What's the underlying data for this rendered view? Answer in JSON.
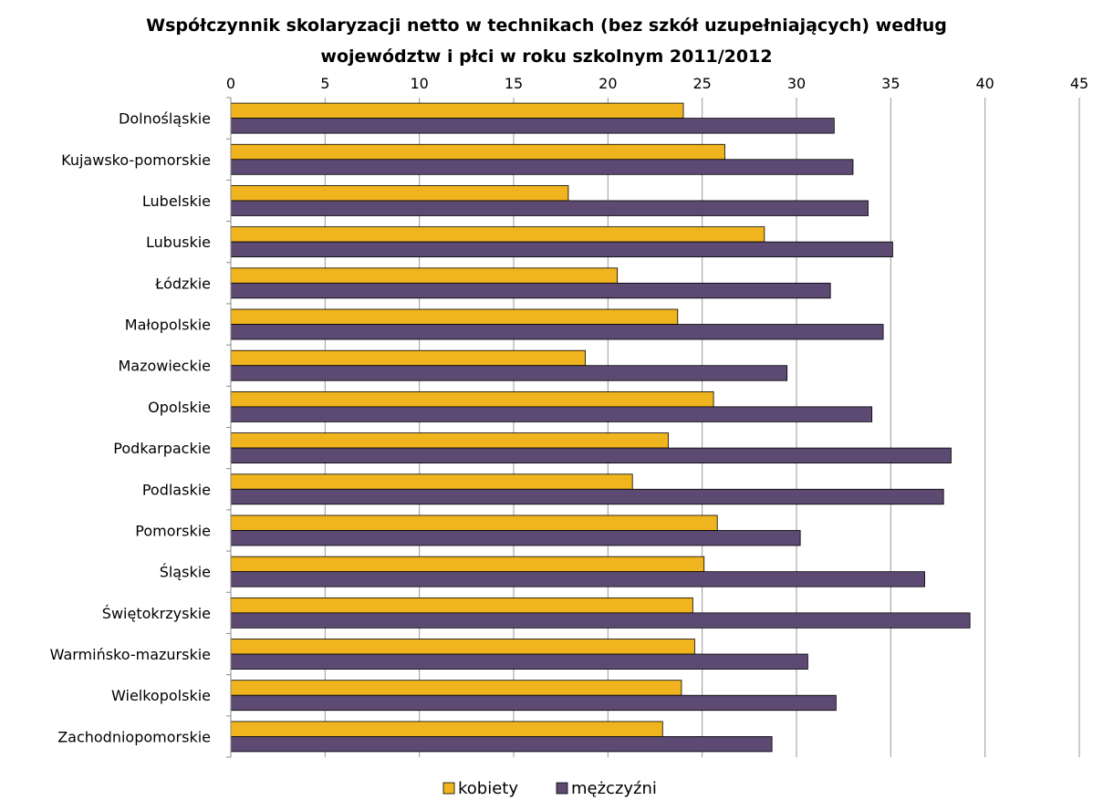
{
  "chart_data": {
    "type": "bar",
    "orientation": "horizontal",
    "title_lines": [
      "Współczynnik skolaryzacji netto w technikach (bez szkół uzupełniających) według",
      "województw i płci w roku szkolnym 2011/2012"
    ],
    "xlim": [
      0,
      45
    ],
    "x_ticks": [
      "0",
      "5",
      "10",
      "15",
      "20",
      "25",
      "30",
      "35",
      "40",
      "45"
    ],
    "x_axis_position": "top",
    "grid": "vertical",
    "legend_position": "bottom",
    "categories": [
      "Dolnośląskie",
      "Kujawsko-pomorskie",
      "Lubelskie",
      "Lubuskie",
      "Łódzkie",
      "Małopolskie",
      "Mazowieckie",
      "Opolskie",
      "Podkarpackie",
      "Podlaskie",
      "Pomorskie",
      "Śląskie",
      "Świętokrzyskie",
      "Warmińsko-mazurskie",
      "Wielkopolskie",
      "Zachodniopomorskie"
    ],
    "series": [
      {
        "name": "kobiety",
        "color": "#F0B41E",
        "values": [
          24.0,
          26.2,
          17.9,
          28.3,
          20.5,
          23.7,
          18.8,
          25.6,
          23.2,
          21.3,
          25.8,
          25.1,
          24.5,
          24.6,
          23.9,
          22.9
        ]
      },
      {
        "name": "mężczyźni",
        "color": "#5C4A72",
        "values": [
          32.0,
          33.0,
          33.8,
          35.1,
          31.8,
          34.6,
          29.5,
          34.0,
          38.2,
          37.8,
          30.2,
          36.8,
          39.2,
          30.6,
          32.1,
          28.7
        ]
      }
    ]
  }
}
